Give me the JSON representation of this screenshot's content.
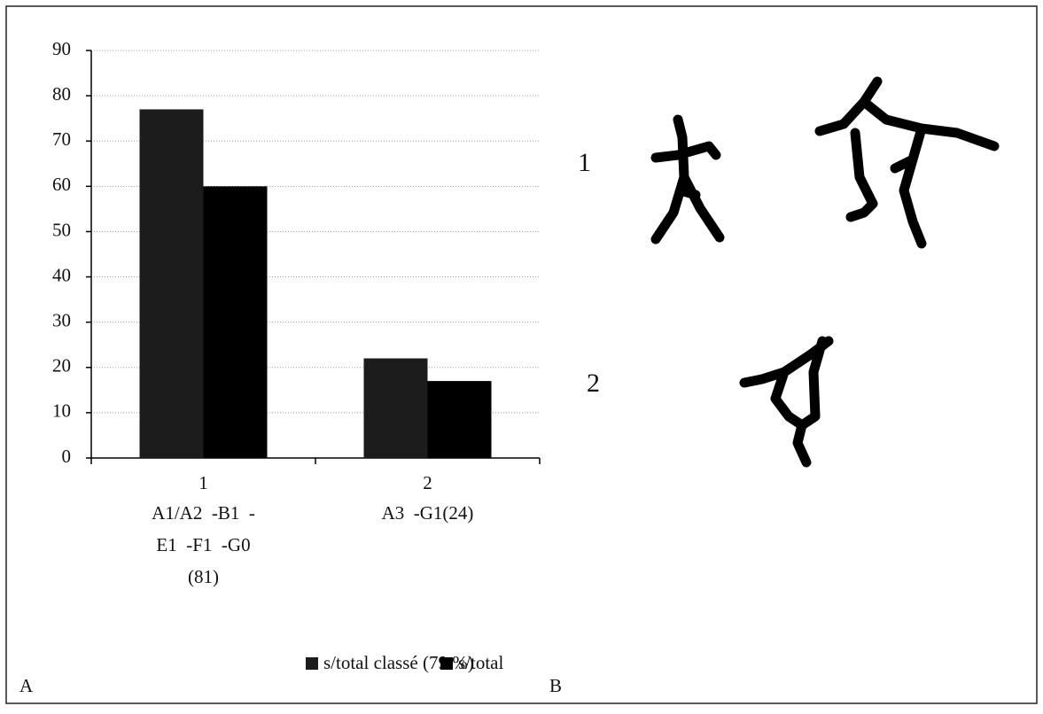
{
  "chart_data": {
    "type": "bar",
    "categories": [
      "1",
      "2"
    ],
    "category_lines": [
      [
        "A1/A2  -B1  -",
        "E1  -F1  -G0",
        "(81)"
      ],
      [
        "A3  -G1(24)"
      ]
    ],
    "series": [
      {
        "name": "s/total classé (79 %)",
        "color": "#1c1c1c",
        "values": [
          77,
          22
        ]
      },
      {
        "name": "s/total",
        "color": "#000000",
        "values": [
          60,
          17
        ]
      }
    ],
    "ylim": [
      0,
      90
    ],
    "yticks": [
      0,
      10,
      20,
      30,
      40,
      50,
      60,
      70,
      80,
      90
    ],
    "grid": true
  },
  "figure": {
    "panel_a": "A",
    "panel_b": "B",
    "row_labels": [
      "1",
      "2"
    ]
  }
}
